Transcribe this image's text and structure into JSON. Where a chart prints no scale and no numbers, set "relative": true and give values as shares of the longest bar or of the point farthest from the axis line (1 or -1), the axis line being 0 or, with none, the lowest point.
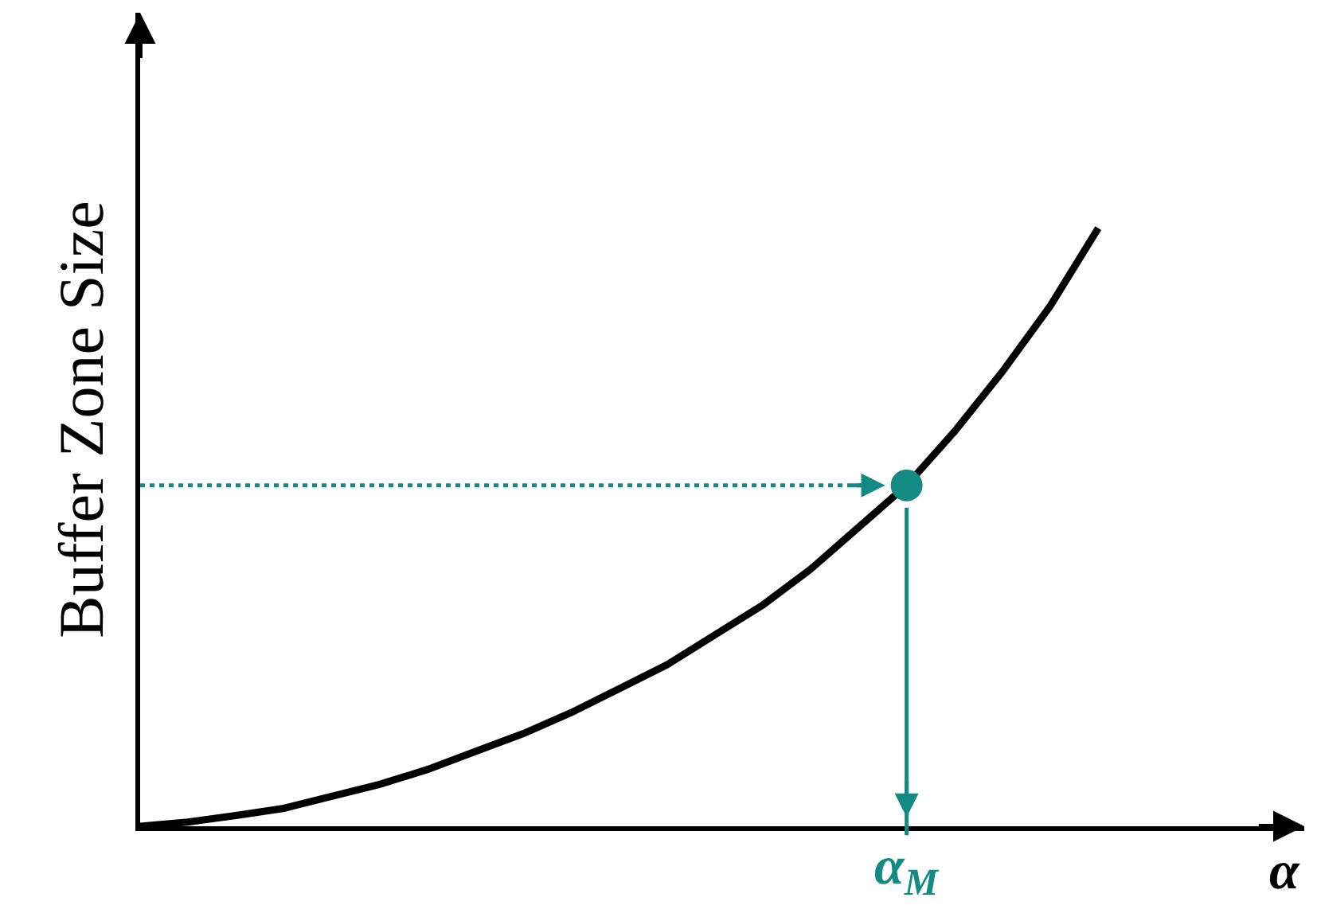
{
  "chart_data": {
    "type": "line",
    "relative": true,
    "ylabel": "Buffer Zone Size",
    "xlabel": "α",
    "categories": [
      null,
      null,
      null,
      null,
      null,
      null,
      null,
      null,
      null,
      null,
      null,
      null,
      null,
      null,
      null,
      null,
      null,
      null,
      null,
      null,
      null
    ],
    "annotations": [
      {
        "text": "α$_{M}$",
        "y": 0.57
      }
    ],
    "series": [
      {
        "color": "#000000",
        "values": [
          0,
          0.007,
          0.018,
          0.03,
          0.05,
          0.07,
          0.095,
          0.125,
          0.155,
          0.19,
          0.23,
          0.27,
          0.32,
          0.37,
          0.43,
          0.5,
          0.57,
          0.66,
          0.76,
          0.87,
          1
        ]
      }
    ]
  }
}
